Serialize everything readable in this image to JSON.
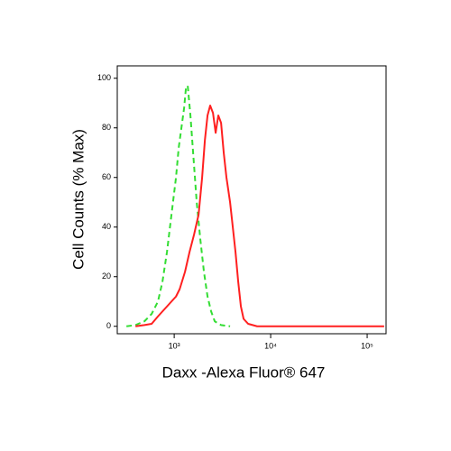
{
  "chart_data": {
    "type": "line",
    "x_label": "Daxx -Alexa Fluor® 647",
    "y_label": "Cell Counts (% Max)",
    "xscale": "log",
    "xlim": [
      257,
      157000
    ],
    "ylim": [
      -3,
      105
    ],
    "xticks": [
      {
        "value": 1000,
        "label": "10³"
      },
      {
        "value": 10000,
        "label": "10⁴"
      },
      {
        "value": 100000,
        "label": "10⁵"
      }
    ],
    "yticks": [
      0,
      20,
      40,
      60,
      80,
      100
    ],
    "series": [
      {
        "color": "#33dd33",
        "dash": true,
        "x": [
          320,
          397,
          491,
          584,
          679,
          756,
          842,
          937,
          1044,
          1114,
          1188,
          1267,
          1323,
          1381,
          1473,
          1571,
          1712,
          1866,
          2033,
          2216,
          2415,
          2633,
          3062,
          3796
        ],
        "values": [
          0,
          0.5,
          2,
          5,
          10,
          18,
          30,
          45,
          60,
          72,
          80,
          88,
          96,
          97,
          85,
          70,
          50,
          35,
          22,
          12,
          6,
          2,
          0.5,
          0
        ]
      },
      {
        "color": "#ff2020",
        "dash": false,
        "x": [
          397,
          491,
          584,
          679,
          756,
          842,
          937,
          1044,
          1140,
          1295,
          1443,
          1607,
          1790,
          1948,
          2080,
          2216,
          2360,
          2525,
          2690,
          2866,
          3062,
          3261,
          3480,
          3796,
          4049,
          4318,
          4607,
          4912,
          5240,
          5840,
          7234,
          15400,
          150000
        ],
        "values": [
          0,
          0.5,
          1,
          4,
          6,
          8,
          10,
          12,
          15,
          22,
          30,
          37,
          45,
          60,
          75,
          85,
          89,
          86,
          78,
          85,
          82,
          70,
          60,
          50,
          40,
          30,
          18,
          8,
          3,
          1,
          0,
          0,
          0
        ]
      }
    ]
  }
}
